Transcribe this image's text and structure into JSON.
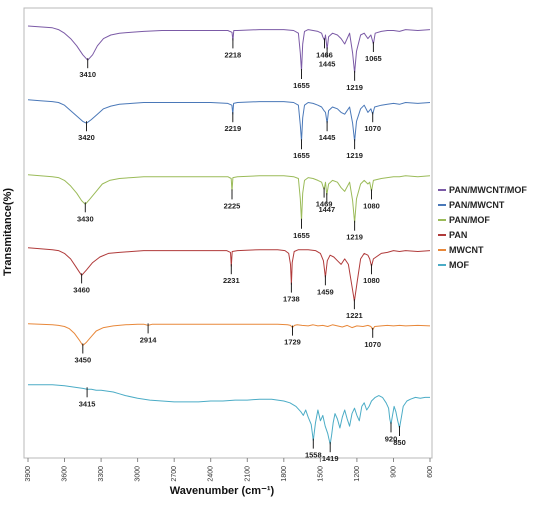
{
  "chart_data": {
    "type": "line",
    "xlabel": "Wavenumber (cm⁻¹)",
    "ylabel": "Transmitance(%)",
    "xlim": [
      3900,
      600
    ],
    "x_reversed": true,
    "x_ticks": [
      3900,
      3600,
      3300,
      3000,
      2700,
      2400,
      2100,
      1800,
      1500,
      1200,
      900,
      600
    ],
    "grid": false,
    "legend_position": "right",
    "series": [
      {
        "name": "PAN/MWCNT/MOF",
        "color": "#7b5aa6",
        "x": [
          3900,
          3800,
          3700,
          3650,
          3600,
          3550,
          3500,
          3450,
          3410,
          3370,
          3330,
          3280,
          3220,
          3150,
          3050,
          2950,
          2800,
          2600,
          2400,
          2260,
          2225,
          2218,
          2211,
          2180,
          2000,
          1800,
          1720,
          1680,
          1665,
          1655,
          1645,
          1630,
          1600,
          1560,
          1520,
          1490,
          1480,
          1466,
          1458,
          1445,
          1432,
          1400,
          1360,
          1330,
          1300,
          1260,
          1235,
          1219,
          1203,
          1170,
          1140,
          1110,
          1085,
          1065,
          1050,
          1000,
          950,
          900,
          850,
          800,
          700,
          600
        ],
        "y": [
          100,
          99,
          98,
          96,
          92,
          86,
          78,
          68,
          62,
          68,
          78,
          86,
          90,
          92,
          93,
          94,
          95,
          95,
          95,
          95,
          93,
          84,
          95,
          95,
          96,
          96,
          95,
          92,
          70,
          50,
          80,
          94,
          96,
          95,
          94,
          92,
          88,
          84,
          90,
          74,
          88,
          92,
          90,
          86,
          80,
          92,
          70,
          48,
          72,
          90,
          92,
          86,
          90,
          80,
          92,
          94,
          95,
          95,
          94,
          96,
          95,
          96
        ],
        "peaks": [
          {
            "x": 3410,
            "label": "3410"
          },
          {
            "x": 2218,
            "label": "2218"
          },
          {
            "x": 1655,
            "label": "1655"
          },
          {
            "x": 1466,
            "label": "1466"
          },
          {
            "x": 1445,
            "label": "1445"
          },
          {
            "x": 1219,
            "label": "1219"
          },
          {
            "x": 1065,
            "label": "1065"
          }
        ]
      },
      {
        "name": "PAN/MWCNT",
        "color": "#4a78b8",
        "x": [
          3900,
          3800,
          3700,
          3650,
          3600,
          3550,
          3500,
          3450,
          3420,
          3380,
          3330,
          3280,
          3220,
          3150,
          3050,
          2950,
          2800,
          2600,
          2400,
          2260,
          2226,
          2219,
          2212,
          2180,
          2000,
          1800,
          1720,
          1680,
          1665,
          1655,
          1645,
          1630,
          1600,
          1560,
          1520,
          1490,
          1470,
          1458,
          1445,
          1432,
          1400,
          1360,
          1330,
          1300,
          1260,
          1235,
          1219,
          1203,
          1170,
          1140,
          1110,
          1085,
          1070,
          1055,
          1000,
          950,
          900,
          850,
          800,
          700,
          600
        ],
        "y": [
          98,
          97,
          96,
          95,
          92,
          86,
          80,
          74,
          72,
          76,
          82,
          88,
          91,
          93,
          94,
          95,
          95,
          95,
          95,
          94,
          92,
          82,
          94,
          95,
          96,
          96,
          95,
          92,
          70,
          52,
          78,
          92,
          95,
          94,
          92,
          90,
          86,
          84,
          72,
          86,
          90,
          88,
          84,
          82,
          90,
          72,
          52,
          74,
          88,
          92,
          84,
          88,
          82,
          90,
          92,
          93,
          94,
          93,
          95,
          94,
          95
        ],
        "peaks": [
          {
            "x": 3420,
            "label": "3420"
          },
          {
            "x": 2219,
            "label": "2219"
          },
          {
            "x": 1655,
            "label": "1655"
          },
          {
            "x": 1445,
            "label": "1445"
          },
          {
            "x": 1219,
            "label": "1219"
          },
          {
            "x": 1070,
            "label": "1070"
          }
        ]
      },
      {
        "name": "PAN/MOF",
        "color": "#9bbb59",
        "x": [
          3900,
          3800,
          3700,
          3650,
          3600,
          3550,
          3500,
          3460,
          3430,
          3390,
          3340,
          3290,
          3230,
          3150,
          3050,
          2950,
          2800,
          2600,
          2400,
          2260,
          2232,
          2225,
          2218,
          2180,
          2000,
          1800,
          1720,
          1680,
          1665,
          1655,
          1645,
          1630,
          1600,
          1560,
          1520,
          1490,
          1480,
          1469,
          1458,
          1447,
          1432,
          1400,
          1360,
          1330,
          1300,
          1260,
          1235,
          1219,
          1203,
          1170,
          1140,
          1110,
          1095,
          1080,
          1065,
          1000,
          950,
          900,
          850,
          800,
          700,
          600
        ],
        "y": [
          98,
          97,
          96,
          95,
          92,
          86,
          78,
          70,
          66,
          72,
          80,
          88,
          92,
          94,
          95,
          96,
          96,
          96,
          96,
          96,
          94,
          80,
          95,
          96,
          97,
          97,
          96,
          94,
          72,
          48,
          78,
          92,
          95,
          94,
          92,
          90,
          86,
          82,
          90,
          76,
          88,
          92,
          90,
          84,
          80,
          90,
          70,
          46,
          72,
          88,
          92,
          88,
          90,
          80,
          92,
          94,
          95,
          96,
          96,
          97,
          96,
          97
        ],
        "peaks": [
          {
            "x": 3430,
            "label": "3430"
          },
          {
            "x": 2225,
            "label": "2225"
          },
          {
            "x": 1655,
            "label": "1655"
          },
          {
            "x": 1469,
            "label": "1469"
          },
          {
            "x": 1447,
            "label": "1447"
          },
          {
            "x": 1219,
            "label": "1219"
          },
          {
            "x": 1080,
            "label": "1080"
          }
        ]
      },
      {
        "name": "PAN",
        "color": "#b03a3a",
        "x": [
          3900,
          3800,
          3700,
          3650,
          3600,
          3550,
          3510,
          3480,
          3460,
          3420,
          3370,
          3310,
          3240,
          3150,
          3050,
          2950,
          2800,
          2600,
          2400,
          2270,
          2238,
          2231,
          2224,
          2180,
          2000,
          1850,
          1790,
          1760,
          1745,
          1738,
          1731,
          1715,
          1680,
          1600,
          1540,
          1500,
          1475,
          1459,
          1443,
          1420,
          1390,
          1360,
          1330,
          1300,
          1270,
          1245,
          1221,
          1197,
          1170,
          1140,
          1110,
          1095,
          1080,
          1065,
          1000,
          950,
          900,
          850,
          800,
          700,
          600
        ],
        "y": [
          98,
          97,
          96,
          95,
          92,
          86,
          78,
          72,
          68,
          74,
          82,
          88,
          92,
          93,
          94,
          95,
          95,
          95,
          95,
          95,
          93,
          78,
          94,
          95,
          96,
          96,
          95,
          92,
          80,
          58,
          82,
          94,
          96,
          96,
          95,
          92,
          84,
          66,
          84,
          90,
          88,
          84,
          80,
          86,
          80,
          60,
          40,
          62,
          86,
          92,
          90,
          86,
          78,
          86,
          92,
          93,
          95,
          94,
          95,
          94,
          95
        ],
        "peaks": [
          {
            "x": 3460,
            "label": "3460"
          },
          {
            "x": 2231,
            "label": "2231"
          },
          {
            "x": 1738,
            "label": "1738"
          },
          {
            "x": 1459,
            "label": "1459"
          },
          {
            "x": 1221,
            "label": "1221"
          },
          {
            "x": 1080,
            "label": "1080"
          }
        ]
      },
      {
        "name": "MWCNT",
        "color": "#e8883a",
        "x": [
          3900,
          3800,
          3700,
          3650,
          3600,
          3560,
          3520,
          3480,
          3450,
          3420,
          3380,
          3340,
          3280,
          3200,
          3100,
          3000,
          2950,
          2914,
          2880,
          2800,
          2600,
          2400,
          2200,
          2000,
          1850,
          1770,
          1745,
          1729,
          1713,
          1690,
          1650,
          1600,
          1560,
          1520,
          1480,
          1440,
          1400,
          1360,
          1320,
          1280,
          1240,
          1200,
          1150,
          1110,
          1085,
          1070,
          1055,
          1000,
          950,
          900,
          850,
          800,
          700,
          600
        ],
        "y": [
          97,
          96,
          95,
          94,
          92,
          88,
          80,
          68,
          58,
          64,
          74,
          84,
          90,
          93,
          95,
          96,
          96,
          94,
          96,
          96,
          96,
          96,
          96,
          96,
          96,
          95,
          94,
          90,
          94,
          95,
          94,
          93,
          95,
          93,
          94,
          92,
          95,
          93,
          91,
          94,
          90,
          93,
          92,
          94,
          92,
          86,
          92,
          93,
          94,
          93,
          94,
          93,
          94,
          93
        ],
        "peaks": [
          {
            "x": 3450,
            "label": "3450"
          },
          {
            "x": 2914,
            "label": "2914"
          },
          {
            "x": 1729,
            "label": "1729"
          },
          {
            "x": 1070,
            "label": "1070"
          }
        ]
      },
      {
        "name": "MOF",
        "color": "#4bacc6",
        "x": [
          3900,
          3800,
          3700,
          3600,
          3500,
          3450,
          3415,
          3380,
          3340,
          3300,
          3250,
          3200,
          3150,
          3100,
          3000,
          2900,
          2800,
          2700,
          2600,
          2500,
          2400,
          2300,
          2200,
          2100,
          2000,
          1900,
          1800,
          1750,
          1700,
          1660,
          1640,
          1620,
          1600,
          1575,
          1558,
          1540,
          1520,
          1500,
          1480,
          1460,
          1440,
          1430,
          1419,
          1408,
          1395,
          1380,
          1360,
          1340,
          1320,
          1300,
          1280,
          1260,
          1240,
          1220,
          1200,
          1180,
          1160,
          1140,
          1120,
          1100,
          1080,
          1050,
          1020,
          990,
          960,
          940,
          930,
          920,
          910,
          895,
          880,
          865,
          850,
          835,
          820,
          790,
          760,
          720,
          680,
          640,
          600
        ],
        "y": [
          98,
          98,
          98,
          97,
          95,
          94,
          93,
          93,
          92,
          92,
          91,
          90,
          88,
          86,
          83,
          81,
          80,
          79,
          79,
          79,
          80,
          80,
          81,
          81,
          82,
          82,
          80,
          78,
          74,
          68,
          64,
          70,
          62,
          54,
          36,
          56,
          70,
          58,
          64,
          52,
          44,
          38,
          32,
          42,
          56,
          66,
          60,
          50,
          62,
          70,
          60,
          52,
          66,
          72,
          64,
          58,
          74,
          78,
          70,
          74,
          80,
          84,
          86,
          84,
          78,
          72,
          60,
          54,
          62,
          74,
          68,
          58,
          50,
          62,
          74,
          80,
          82,
          84,
          83,
          84,
          84
        ],
        "peaks": [
          {
            "x": 3415,
            "label": "3415"
          },
          {
            "x": 1558,
            "label": "1558"
          },
          {
            "x": 1419,
            "label": "1419"
          },
          {
            "x": 920,
            "label": "920"
          },
          {
            "x": 850,
            "label": "850"
          }
        ]
      }
    ]
  }
}
